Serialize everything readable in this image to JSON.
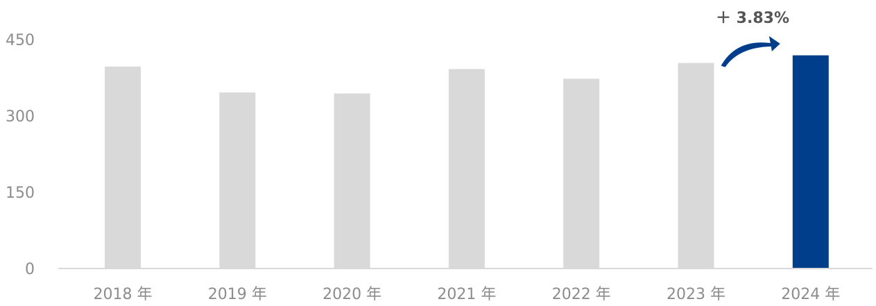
{
  "chart_data": {
    "type": "bar",
    "categories": [
      "2018 年",
      "2019 年",
      "2020 年",
      "2021 年",
      "2022 年",
      "2023 年",
      "2024 年"
    ],
    "values": [
      397,
      346,
      344,
      392,
      373,
      404,
      419
    ],
    "ylim": [
      0,
      450
    ],
    "yticks": [
      "0",
      "150",
      "300",
      "450"
    ],
    "grid": false,
    "legend": "none",
    "highlight_index": 6,
    "colors": {
      "bar": "#d9d9d9",
      "highlight": "#003e8c",
      "axis": "#d9d9d9",
      "arrow": "#003e8c"
    },
    "annotation": {
      "text": "＋ 3.83%",
      "from_index": 5,
      "to_index": 6
    }
  }
}
